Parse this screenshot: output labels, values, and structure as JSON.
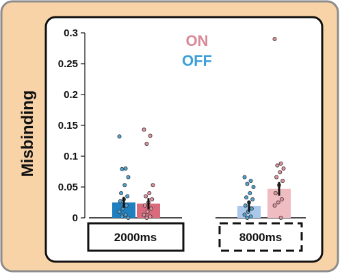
{
  "chart_data": {
    "type": "bar",
    "ylabel": "Misbinding",
    "ylim": [
      0,
      0.3
    ],
    "yticks": [
      "0",
      "0.05",
      "0.1",
      "0.15",
      "0.2",
      "0.25",
      "0.3"
    ],
    "legend": [
      "ON",
      "OFF"
    ],
    "legend_placement": "top-center",
    "categories": [
      "2000ms",
      "8000ms"
    ],
    "series": [
      {
        "name": "OFF",
        "values": [
          0.025,
          0.019
        ],
        "errors": [
          0.009,
          0.009
        ],
        "points": [
          [
            0.132,
            0.08,
            0.079,
            0.066,
            0.053,
            0.04,
            0.035,
            0.03,
            0.027,
            0.02,
            0.015,
            0.01,
            0.005,
            0.002,
            0.0
          ],
          [
            0.066,
            0.06,
            0.055,
            0.05,
            0.04,
            0.033,
            0.03,
            0.025,
            0.02,
            0.015,
            0.01,
            0.005,
            0.002,
            0.0
          ]
        ]
      },
      {
        "name": "ON",
        "values": [
          0.023,
          0.047
        ],
        "errors": [
          0.009,
          0.011
        ],
        "points": [
          [
            0.143,
            0.133,
            0.12,
            0.053,
            0.04,
            0.035,
            0.03,
            0.025,
            0.02,
            0.015,
            0.01,
            0.005,
            0.002,
            0.0
          ],
          [
            0.29,
            0.088,
            0.085,
            0.08,
            0.074,
            0.066,
            0.06,
            0.053,
            0.04,
            0.03,
            0.025,
            0.02,
            0.0
          ]
        ]
      }
    ],
    "colors": {
      "2000ms": {
        "OFF": "#1f7fbf",
        "ON": "#d96b7c"
      },
      "8000ms": {
        "OFF": "#a9c8ea",
        "ON": "#efbcc2"
      },
      "legend_on": "#d98a98",
      "legend_off": "#3ea0d8",
      "dot_off": "#4fa3d3",
      "dot_on": "#e2909c",
      "frame_bg": "#f9d3a8",
      "frame_border": "#8c8c8c"
    },
    "grid": false
  }
}
